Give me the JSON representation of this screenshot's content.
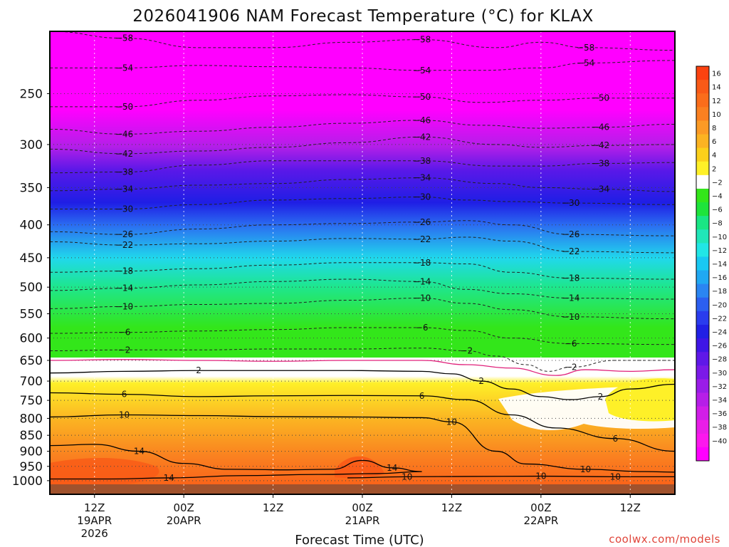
{
  "chart_data": {
    "type": "heatmap",
    "title": "2026041906 NAM Forecast Temperature (°C) for KLAX",
    "xlabel": "Forecast Time (UTC)",
    "ylabel": "",
    "credit": "coolwx.com/models",
    "y_scale": "log-pressure",
    "ylim": [
      1050,
      200
    ],
    "xlim_hours": [
      0,
      84
    ],
    "pressure_levels": [
      "250",
      "300",
      "350",
      "400",
      "450",
      "500",
      "550",
      "600",
      "650",
      "700",
      "750",
      "800",
      "850",
      "900",
      "950",
      "1000"
    ],
    "x_ticks": [
      {
        "hour": 6,
        "time": "12Z",
        "date": "19APR",
        "year": "2026"
      },
      {
        "hour": 18,
        "time": "00Z",
        "date": "20APR",
        "year": ""
      },
      {
        "hour": 30,
        "time": "12Z",
        "date": "",
        "year": ""
      },
      {
        "hour": 42,
        "time": "00Z",
        "date": "21APR",
        "year": ""
      },
      {
        "hour": 54,
        "time": "12Z",
        "date": "",
        "year": ""
      },
      {
        "hour": 66,
        "time": "00Z",
        "date": "22APR",
        "year": ""
      },
      {
        "hour": 78,
        "time": "12Z",
        "date": "",
        "year": ""
      }
    ],
    "colorbar": {
      "labels": [
        "16",
        "14",
        "12",
        "10",
        "8",
        "6",
        "4",
        "2",
        "−2",
        "−4",
        "−6",
        "−8",
        "−10",
        "−12",
        "−14",
        "−16",
        "−18",
        "−20",
        "−22",
        "−24",
        "−26",
        "−28",
        "−30",
        "−32",
        "−34",
        "−36",
        "−38",
        "−40"
      ],
      "colors": [
        "#fb4210",
        "#f95a17",
        "#fa6d1b",
        "#fa8020",
        "#fb9a25",
        "#fbb322",
        "#fbd01b",
        "#fef028",
        "#ffffff",
        "#33e61a",
        "#1ee43b",
        "#19e684",
        "#20e6b9",
        "#21e6e6",
        "#19c8f2",
        "#20a8f2",
        "#2a85f2",
        "#2c5ff0",
        "#2a3cee",
        "#2120e5",
        "#3f16e6",
        "#5f18e8",
        "#7b1ae8",
        "#9a1ce8",
        "#b61ee8",
        "#d11ee8",
        "#e91ee8",
        "#fc18ee",
        "#ff00ff"
      ]
    },
    "surface_color": "#a0522d",
    "isotherms": [
      {
        "label": "−58",
        "style": "dashed",
        "points": [
          [
            0,
            200
          ],
          [
            10,
            205
          ],
          [
            20,
            212
          ],
          [
            30,
            212
          ],
          [
            40,
            208
          ],
          [
            50,
            206
          ],
          [
            60,
            212
          ],
          [
            66,
            208
          ],
          [
            72,
            212
          ],
          [
            84,
            214
          ]
        ]
      },
      {
        "label": "−54",
        "style": "dashed",
        "points": [
          [
            0,
            228
          ],
          [
            10,
            228
          ],
          [
            20,
            226
          ],
          [
            30,
            227
          ],
          [
            40,
            228
          ],
          [
            50,
            230
          ],
          [
            58,
            230
          ],
          [
            66,
            228
          ],
          [
            72,
            224
          ],
          [
            84,
            222
          ]
        ]
      },
      {
        "label": "−50",
        "style": "dashed",
        "points": [
          [
            0,
            262
          ],
          [
            10,
            262
          ],
          [
            20,
            256
          ],
          [
            30,
            252
          ],
          [
            40,
            251
          ],
          [
            50,
            253
          ],
          [
            58,
            258
          ],
          [
            66,
            256
          ],
          [
            74,
            254
          ],
          [
            84,
            254
          ]
        ]
      },
      {
        "label": "−46",
        "style": "dashed",
        "points": [
          [
            0,
            284
          ],
          [
            10,
            289
          ],
          [
            20,
            286
          ],
          [
            30,
            282
          ],
          [
            40,
            278
          ],
          [
            50,
            275
          ],
          [
            58,
            280
          ],
          [
            66,
            283
          ],
          [
            74,
            282
          ],
          [
            84,
            279
          ]
        ]
      },
      {
        "label": "−42",
        "style": "dashed",
        "points": [
          [
            0,
            305
          ],
          [
            10,
            310
          ],
          [
            20,
            307
          ],
          [
            30,
            303
          ],
          [
            40,
            298
          ],
          [
            50,
            292
          ],
          [
            60,
            300
          ],
          [
            66,
            303
          ],
          [
            74,
            301
          ],
          [
            84,
            300
          ]
        ]
      },
      {
        "label": "−38",
        "style": "dashed",
        "points": [
          [
            0,
            332
          ],
          [
            10,
            331
          ],
          [
            20,
            323
          ],
          [
            30,
            318
          ],
          [
            40,
            318
          ],
          [
            50,
            318
          ],
          [
            60,
            324
          ],
          [
            66,
            324
          ],
          [
            74,
            321
          ],
          [
            84,
            320
          ]
        ]
      },
      {
        "label": "−34",
        "style": "dashed",
        "points": [
          [
            0,
            354
          ],
          [
            10,
            352
          ],
          [
            20,
            347
          ],
          [
            30,
            345
          ],
          [
            40,
            340
          ],
          [
            50,
            338
          ],
          [
            60,
            345
          ],
          [
            66,
            350
          ],
          [
            74,
            352
          ],
          [
            84,
            355
          ]
        ]
      },
      {
        "label": "−30",
        "style": "dashed",
        "points": [
          [
            0,
            378
          ],
          [
            10,
            378
          ],
          [
            20,
            372
          ],
          [
            30,
            366
          ],
          [
            40,
            364
          ],
          [
            50,
            362
          ],
          [
            56,
            366
          ],
          [
            62,
            368
          ],
          [
            70,
            370
          ],
          [
            84,
            372
          ]
        ]
      },
      {
        "label": "−26",
        "style": "dashed",
        "points": [
          [
            0,
            410
          ],
          [
            10,
            414
          ],
          [
            20,
            406
          ],
          [
            30,
            400
          ],
          [
            40,
            398
          ],
          [
            50,
            396
          ],
          [
            56,
            394
          ],
          [
            62,
            400
          ],
          [
            70,
            414
          ],
          [
            84,
            416
          ]
        ]
      },
      {
        "label": "−22",
        "style": "dashed",
        "points": [
          [
            0,
            425
          ],
          [
            10,
            430
          ],
          [
            20,
            428
          ],
          [
            30,
            424
          ],
          [
            40,
            420
          ],
          [
            50,
            421
          ],
          [
            56,
            418
          ],
          [
            62,
            424
          ],
          [
            70,
            440
          ],
          [
            84,
            442
          ]
        ]
      },
      {
        "label": "−18",
        "style": "dashed",
        "points": [
          [
            0,
            474
          ],
          [
            10,
            472
          ],
          [
            20,
            468
          ],
          [
            30,
            462
          ],
          [
            40,
            458
          ],
          [
            50,
            458
          ],
          [
            56,
            460
          ],
          [
            62,
            474
          ],
          [
            70,
            484
          ],
          [
            84,
            486
          ]
        ]
      },
      {
        "label": "−14",
        "style": "dashed",
        "points": [
          [
            0,
            506
          ],
          [
            10,
            502
          ],
          [
            20,
            496
          ],
          [
            30,
            490
          ],
          [
            40,
            486
          ],
          [
            50,
            490
          ],
          [
            56,
            504
          ],
          [
            62,
            512
          ],
          [
            70,
            520
          ],
          [
            84,
            522
          ]
        ]
      },
      {
        "label": "−10",
        "style": "dashed",
        "points": [
          [
            0,
            540
          ],
          [
            10,
            536
          ],
          [
            20,
            532
          ],
          [
            30,
            530
          ],
          [
            40,
            524
          ],
          [
            50,
            520
          ],
          [
            56,
            530
          ],
          [
            62,
            542
          ],
          [
            70,
            556
          ],
          [
            84,
            560
          ]
        ]
      },
      {
        "label": "−6",
        "style": "dashed",
        "points": [
          [
            0,
            590
          ],
          [
            10,
            588
          ],
          [
            20,
            585
          ],
          [
            30,
            582
          ],
          [
            40,
            578
          ],
          [
            50,
            578
          ],
          [
            56,
            584
          ],
          [
            62,
            600
          ],
          [
            70,
            612
          ],
          [
            84,
            614
          ]
        ]
      },
      {
        "label": "−2",
        "style": "dashed",
        "points": [
          [
            0,
            628
          ],
          [
            10,
            626
          ],
          [
            20,
            626
          ],
          [
            30,
            624
          ],
          [
            40,
            624
          ],
          [
            50,
            622
          ],
          [
            56,
            628
          ],
          [
            60,
            640
          ],
          [
            64,
            660
          ],
          [
            67,
            676
          ],
          [
            70,
            666
          ],
          [
            76,
            650
          ],
          [
            84,
            650
          ]
        ]
      },
      {
        "label": "",
        "style": "magenta",
        "points": [
          [
            0,
            650
          ],
          [
            10,
            648
          ],
          [
            20,
            650
          ],
          [
            30,
            652
          ],
          [
            40,
            650
          ],
          [
            50,
            650
          ],
          [
            56,
            660
          ],
          [
            62,
            668
          ],
          [
            68,
            686
          ],
          [
            72,
            672
          ],
          [
            78,
            676
          ],
          [
            84,
            672
          ]
        ]
      },
      {
        "label": "2",
        "style": "solid",
        "points": [
          [
            0,
            680
          ],
          [
            10,
            676
          ],
          [
            20,
            674
          ],
          [
            30,
            674
          ],
          [
            40,
            674
          ],
          [
            50,
            676
          ],
          [
            54,
            682
          ],
          [
            58,
            700
          ],
          [
            62,
            720
          ],
          [
            66,
            740
          ],
          [
            70,
            748
          ],
          [
            74,
            740
          ],
          [
            78,
            720
          ],
          [
            84,
            708
          ]
        ]
      },
      {
        "label": "6",
        "style": "solid",
        "points": [
          [
            0,
            730
          ],
          [
            10,
            734
          ],
          [
            20,
            740
          ],
          [
            30,
            738
          ],
          [
            40,
            737
          ],
          [
            50,
            738
          ],
          [
            56,
            748
          ],
          [
            62,
            790
          ],
          [
            68,
            828
          ],
          [
            76,
            860
          ],
          [
            84,
            900
          ]
        ]
      },
      {
        "label": "10",
        "style": "solid",
        "points": [
          [
            0,
            796
          ],
          [
            10,
            790
          ],
          [
            20,
            792
          ],
          [
            30,
            795
          ],
          [
            40,
            796
          ],
          [
            50,
            798
          ],
          [
            54,
            810
          ],
          [
            60,
            900
          ],
          [
            64,
            942
          ],
          [
            72,
            960
          ],
          [
            80,
            968
          ],
          [
            84,
            970
          ]
        ]
      },
      {
        "label": "14",
        "style": "solid",
        "points": [
          [
            0,
            882
          ],
          [
            6,
            878
          ],
          [
            12,
            900
          ],
          [
            18,
            940
          ],
          [
            24,
            960
          ],
          [
            32,
            962
          ],
          [
            38,
            960
          ],
          [
            42,
            930
          ],
          [
            46,
            955
          ],
          [
            50,
            968
          ],
          [
            44,
            975
          ],
          [
            36,
            978
          ],
          [
            26,
            982
          ],
          [
            16,
            990
          ],
          [
            8,
            994
          ],
          [
            0,
            994
          ]
        ]
      },
      {
        "label": "10",
        "style": "solid",
        "points": [
          [
            40,
            990
          ],
          [
            48,
            986
          ],
          [
            56,
            985
          ],
          [
            66,
            984
          ],
          [
            76,
            986
          ],
          [
            84,
            986
          ]
        ]
      }
    ]
  }
}
